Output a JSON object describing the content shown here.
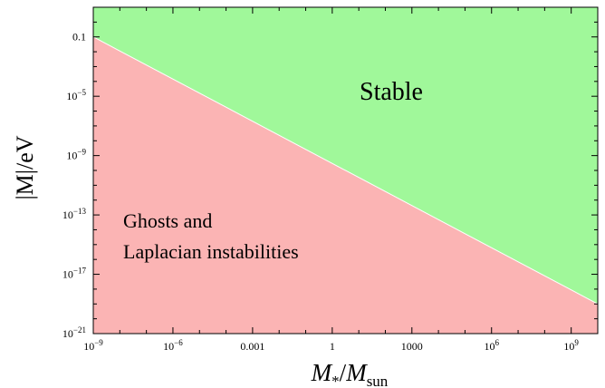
{
  "chart_data": {
    "type": "area",
    "title": "",
    "xlabel": {
      "main": "M",
      "sub1": "*",
      "slash": "/",
      "main2": "M",
      "sub2": "sun"
    },
    "ylabel": "|M|/eV",
    "x_scale": "log",
    "y_scale": "log",
    "xlim": [
      1e-09,
      10000000000.0
    ],
    "ylim": [
      1e-21,
      10
    ],
    "x_ticks": [
      {
        "value": 1e-09,
        "label": "10",
        "exp": "−9"
      },
      {
        "value": 1e-06,
        "label": "10",
        "exp": "−6"
      },
      {
        "value": 0.001,
        "label": "0.001",
        "exp": ""
      },
      {
        "value": 1,
        "label": "1",
        "exp": ""
      },
      {
        "value": 1000,
        "label": "1000",
        "exp": ""
      },
      {
        "value": 1000000.0,
        "label": "10",
        "exp": "6"
      },
      {
        "value": 1000000000.0,
        "label": "10",
        "exp": "9"
      }
    ],
    "y_ticks": [
      {
        "value": 0.1,
        "label": "0.1",
        "exp": ""
      },
      {
        "value": 1e-05,
        "label": "10",
        "exp": "−5"
      },
      {
        "value": 1e-09,
        "label": "10",
        "exp": "−9"
      },
      {
        "value": 1e-13,
        "label": "10",
        "exp": "−13"
      },
      {
        "value": 1e-17,
        "label": "10",
        "exp": "−17"
      },
      {
        "value": 1e-21,
        "label": "10",
        "exp": "−21"
      }
    ],
    "boundary": {
      "x": [
        1e-09,
        10000000000.0
      ],
      "y": [
        0.1,
        1e-19
      ]
    },
    "regions": [
      {
        "name": "Stable",
        "color": "#a0f89a",
        "label_color": "#0b870b",
        "side": "above"
      },
      {
        "name": "Ghosts and Laplacian instabilities",
        "color": "#fbb4b4",
        "label_color": "#fa1e1e",
        "side": "below",
        "lines": [
          "Ghosts and",
          "Laplacian instabilities"
        ]
      }
    ]
  }
}
